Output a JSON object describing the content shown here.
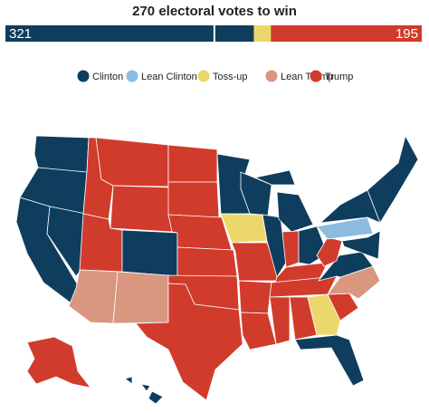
{
  "header": {
    "title": "270 electoral votes to win"
  },
  "bar": {
    "segments": [
      {
        "value": 321,
        "color": "#0f3d5e"
      },
      {
        "value": 22,
        "color": "#ecd86a"
      },
      {
        "value": 195,
        "color": "#d13b2c"
      }
    ],
    "threshold": 270
  },
  "legend": [
    {
      "label": "Clinton",
      "color": "#0f3d5e"
    },
    {
      "label": "Lean Clinton",
      "color": "#8cbbe0"
    },
    {
      "label": "Toss-up",
      "color": "#ecd86a"
    },
    {
      "label": "Lean Trump",
      "color": "#d8977e"
    },
    {
      "label": "Trump",
      "color": "#d13b2c"
    }
  ]
}
